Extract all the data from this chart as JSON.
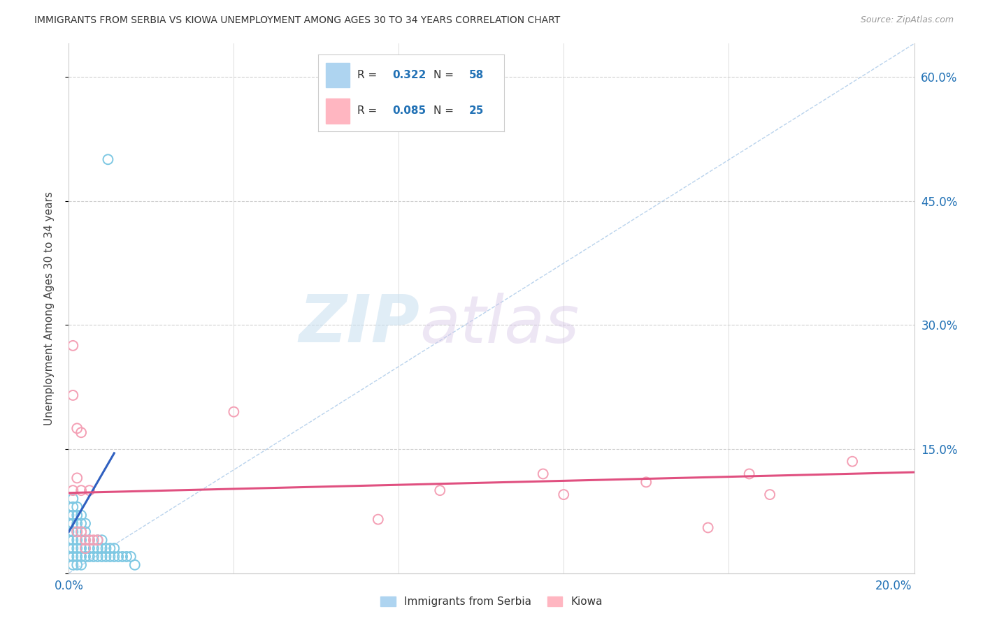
{
  "title": "IMMIGRANTS FROM SERBIA VS KIOWA UNEMPLOYMENT AMONG AGES 30 TO 34 YEARS CORRELATION CHART",
  "source": "Source: ZipAtlas.com",
  "ylabel": "Unemployment Among Ages 30 to 34 years",
  "yticks_right": [
    "60.0%",
    "45.0%",
    "30.0%",
    "15.0%",
    ""
  ],
  "ytick_vals": [
    0.6,
    0.45,
    0.3,
    0.15,
    0.0
  ],
  "xtick_vals": [
    0.0,
    0.04,
    0.08,
    0.12,
    0.16,
    0.2
  ],
  "xtick_labels": [
    "0.0%",
    "",
    "",
    "",
    "",
    "20.0%"
  ],
  "legend_r_blue": "0.322",
  "legend_n_blue": "58",
  "legend_r_pink": "0.085",
  "legend_n_pink": "25",
  "label_blue": "Immigrants from Serbia",
  "label_pink": "Kiowa",
  "color_blue": "#7ec8e3",
  "color_pink": "#f4a0b5",
  "color_blue_line": "#3060c0",
  "color_pink_line": "#e05080",
  "color_dash": "#a8c8e8",
  "watermark_zip": "ZIP",
  "watermark_atlas": "atlas",
  "xlim": [
    0.0,
    0.205
  ],
  "ylim": [
    0.0,
    0.64
  ],
  "blue_x": [
    0.0,
    0.0,
    0.0,
    0.0,
    0.0,
    0.0,
    0.001,
    0.001,
    0.001,
    0.001,
    0.001,
    0.001,
    0.001,
    0.001,
    0.001,
    0.002,
    0.002,
    0.002,
    0.002,
    0.002,
    0.002,
    0.002,
    0.002,
    0.003,
    0.003,
    0.003,
    0.003,
    0.003,
    0.003,
    0.003,
    0.004,
    0.004,
    0.004,
    0.004,
    0.004,
    0.005,
    0.005,
    0.005,
    0.006,
    0.006,
    0.007,
    0.007,
    0.007,
    0.008,
    0.008,
    0.008,
    0.009,
    0.009,
    0.01,
    0.01,
    0.011,
    0.011,
    0.012,
    0.013,
    0.014,
    0.015,
    0.016,
    0.0095
  ],
  "blue_y": [
    0.02,
    0.03,
    0.04,
    0.05,
    0.06,
    0.07,
    0.01,
    0.02,
    0.03,
    0.04,
    0.05,
    0.06,
    0.07,
    0.08,
    0.09,
    0.01,
    0.02,
    0.03,
    0.04,
    0.05,
    0.06,
    0.07,
    0.08,
    0.01,
    0.02,
    0.03,
    0.04,
    0.05,
    0.06,
    0.07,
    0.02,
    0.03,
    0.04,
    0.05,
    0.06,
    0.02,
    0.03,
    0.04,
    0.02,
    0.03,
    0.02,
    0.03,
    0.04,
    0.02,
    0.03,
    0.04,
    0.02,
    0.03,
    0.02,
    0.03,
    0.02,
    0.03,
    0.02,
    0.02,
    0.02,
    0.02,
    0.01,
    0.5
  ],
  "pink_x": [
    0.001,
    0.001,
    0.001,
    0.002,
    0.002,
    0.002,
    0.003,
    0.003,
    0.003,
    0.004,
    0.004,
    0.005,
    0.005,
    0.006,
    0.007,
    0.04,
    0.075,
    0.09,
    0.115,
    0.12,
    0.14,
    0.155,
    0.165,
    0.17,
    0.19
  ],
  "pink_y": [
    0.275,
    0.215,
    0.1,
    0.175,
    0.115,
    0.05,
    0.17,
    0.1,
    0.05,
    0.04,
    0.03,
    0.1,
    0.04,
    0.04,
    0.04,
    0.195,
    0.065,
    0.1,
    0.12,
    0.095,
    0.11,
    0.055,
    0.12,
    0.095,
    0.135
  ],
  "blue_line_x": [
    0.0,
    0.011
  ],
  "blue_line_y": [
    0.05,
    0.145
  ],
  "pink_line_x": [
    0.0,
    0.205
  ],
  "pink_line_y": [
    0.097,
    0.122
  ],
  "dash_line_x": [
    0.0,
    0.205
  ],
  "dash_line_y": [
    0.0,
    0.64
  ]
}
